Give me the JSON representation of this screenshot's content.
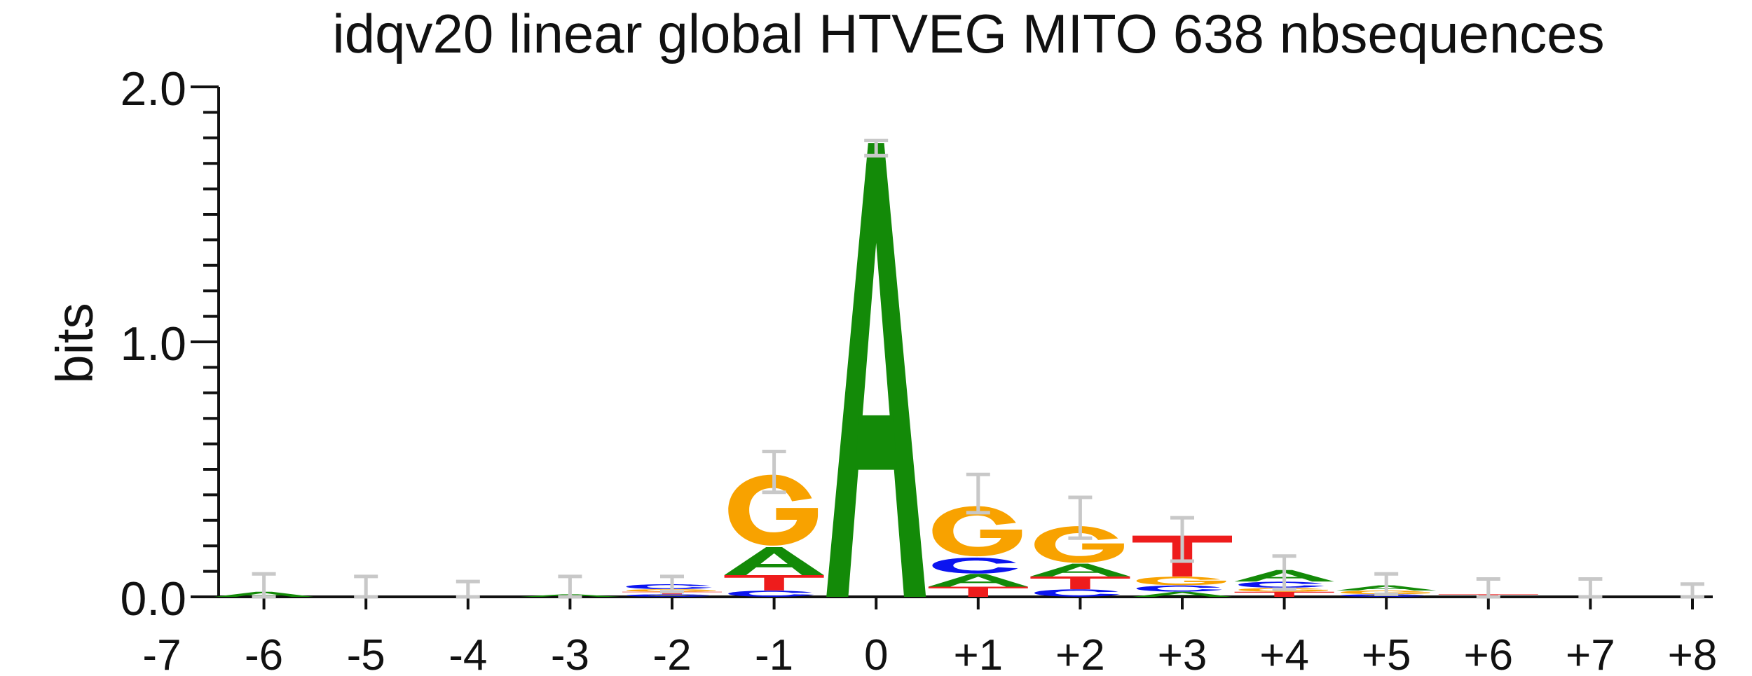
{
  "chart_data": {
    "type": "sequence_logo",
    "title": "idqv20 linear global HTVEG MITO 638 nbsequences",
    "ylabel": "bits",
    "ylim": [
      0,
      2.0
    ],
    "yticks": [
      "0.0",
      "1.0",
      "2.0"
    ],
    "positions": [
      "-7",
      "-6",
      "-5",
      "-4",
      "-3",
      "-2",
      "-1",
      "0",
      "+1",
      "+2",
      "+3",
      "+4",
      "+5",
      "+6",
      "+7",
      "+8"
    ],
    "colors": {
      "A": "#138a08",
      "C": "#0b14f0",
      "G": "#f8a200",
      "T": "#ee1c1c",
      "error": "#c8c8c8"
    },
    "columns": [
      {
        "pos": "-7",
        "letters": [],
        "err": null
      },
      {
        "pos": "-6",
        "letters": [
          {
            "l": "A",
            "h": 0.02
          }
        ],
        "err": [
          0.0,
          0.09
        ]
      },
      {
        "pos": "-5",
        "letters": [],
        "err": [
          0.0,
          0.08
        ]
      },
      {
        "pos": "-4",
        "letters": [],
        "err": [
          0.0,
          0.06
        ]
      },
      {
        "pos": "-3",
        "letters": [
          {
            "l": "A",
            "h": 0.01
          }
        ],
        "err": [
          0.0,
          0.08
        ]
      },
      {
        "pos": "-2",
        "letters": [
          {
            "l": "C",
            "h": 0.01
          },
          {
            "l": "T",
            "h": 0.01
          },
          {
            "l": "G",
            "h": 0.01
          },
          {
            "l": "C",
            "h": 0.02
          }
        ],
        "err": [
          0.02,
          0.08
        ]
      },
      {
        "pos": "-1",
        "letters": [
          {
            "l": "C",
            "h": 0.025
          },
          {
            "l": "T",
            "h": 0.06
          },
          {
            "l": "A",
            "h": 0.11
          },
          {
            "l": "G",
            "h": 0.29
          }
        ],
        "err": [
          0.41,
          0.57
        ]
      },
      {
        "pos": "0",
        "letters": [
          {
            "l": "A",
            "h": 1.78
          }
        ],
        "err": [
          1.73,
          1.79
        ]
      },
      {
        "pos": "+1",
        "letters": [
          {
            "l": "T",
            "h": 0.04
          },
          {
            "l": "A",
            "h": 0.05
          },
          {
            "l": "C",
            "h": 0.065
          },
          {
            "l": "G",
            "h": 0.205
          }
        ],
        "err": [
          0.33,
          0.48
        ]
      },
      {
        "pos": "+2",
        "letters": [
          {
            "l": "C",
            "h": 0.03
          },
          {
            "l": "T",
            "h": 0.05
          },
          {
            "l": "A",
            "h": 0.05
          },
          {
            "l": "G",
            "h": 0.15
          }
        ],
        "err": [
          0.23,
          0.39
        ]
      },
      {
        "pos": "+3",
        "letters": [
          {
            "l": "A",
            "h": 0.02
          },
          {
            "l": "C",
            "h": 0.025
          },
          {
            "l": "G",
            "h": 0.035
          },
          {
            "l": "T",
            "h": 0.16
          }
        ],
        "err": [
          0.14,
          0.31
        ]
      },
      {
        "pos": "+4",
        "letters": [
          {
            "l": "T",
            "h": 0.02
          },
          {
            "l": "G",
            "h": 0.015
          },
          {
            "l": "C",
            "h": 0.025
          },
          {
            "l": "A",
            "h": 0.045
          }
        ],
        "err": [
          0.03,
          0.16
        ]
      },
      {
        "pos": "+5",
        "letters": [
          {
            "l": "C",
            "h": 0.01
          },
          {
            "l": "G",
            "h": 0.015
          },
          {
            "l": "A",
            "h": 0.02
          }
        ],
        "err": [
          0.01,
          0.09
        ]
      },
      {
        "pos": "+6",
        "letters": [
          {
            "l": "T",
            "h": 0.01
          }
        ],
        "err": [
          0.0,
          0.07
        ]
      },
      {
        "pos": "+7",
        "letters": [],
        "err": [
          0.0,
          0.07
        ]
      },
      {
        "pos": "+8",
        "letters": [],
        "err": [
          0.0,
          0.05
        ]
      }
    ]
  }
}
